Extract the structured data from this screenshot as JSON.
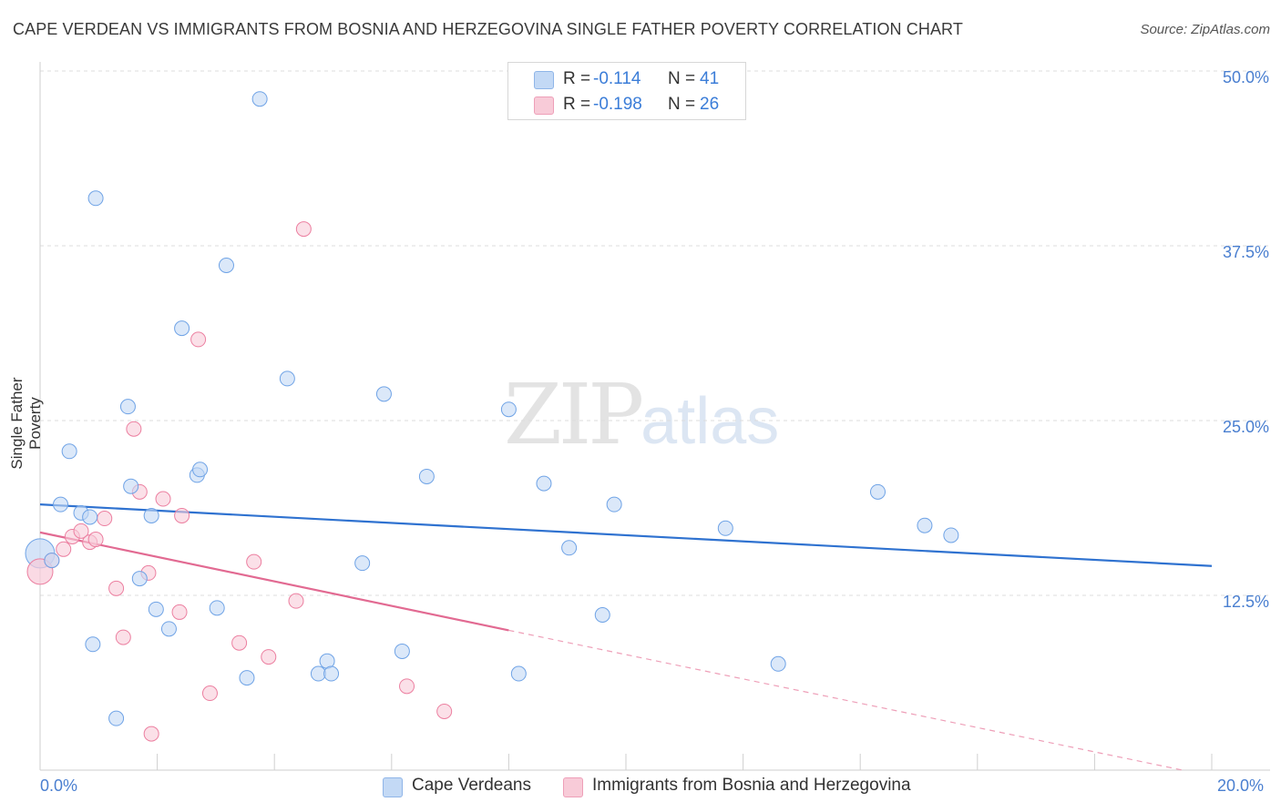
{
  "title": "CAPE VERDEAN VS IMMIGRANTS FROM BOSNIA AND HERZEGOVINA SINGLE FATHER POVERTY CORRELATION CHART",
  "source": "Source: ZipAtlas.com",
  "watermark": {
    "zip": "ZIP",
    "atlas": "atlas"
  },
  "legend_stats": [
    {
      "r_label": "R =",
      "r_value": "-0.114",
      "n_label": "N =",
      "n_value": "41",
      "color": "#a8c8f0"
    },
    {
      "r_label": "R =",
      "r_value": "-0.198",
      "n_label": "N =",
      "n_value": "26",
      "color": "#f5b8ca"
    }
  ],
  "chart_data": {
    "type": "scatter",
    "title": "CAPE VERDEAN VS IMMIGRANTS FROM BOSNIA AND HERZEGOVINA SINGLE FATHER POVERTY CORRELATION CHART",
    "xlabel": "",
    "ylabel": "Single Father Poverty",
    "xlim": [
      0,
      20
    ],
    "ylim": [
      0,
      50
    ],
    "x_tick_labels": [
      "0.0%",
      "20.0%"
    ],
    "y_ticks": [
      12.5,
      25.0,
      37.5,
      50.0
    ],
    "y_tick_labels": [
      "12.5%",
      "25.0%",
      "37.5%",
      "50.0%"
    ],
    "grid": "horizontal dashed",
    "legend_position": "bottom",
    "series": [
      {
        "name": "Cape Verdeans",
        "color": "#6fa3e6",
        "fill": "#c3d9f5",
        "points": [
          [
            0.05,
            15.5
          ],
          [
            0.2,
            15.0
          ],
          [
            0.35,
            19.0
          ],
          [
            0.5,
            22.8
          ],
          [
            0.7,
            18.4
          ],
          [
            0.85,
            18.1
          ],
          [
            0.9,
            9.0
          ],
          [
            0.95,
            40.9
          ],
          [
            1.3,
            3.7
          ],
          [
            1.5,
            26.0
          ],
          [
            1.55,
            20.3
          ],
          [
            1.7,
            13.7
          ],
          [
            1.9,
            18.2
          ],
          [
            1.98,
            11.5
          ],
          [
            2.2,
            10.1
          ],
          [
            2.42,
            31.6
          ],
          [
            2.68,
            21.1
          ],
          [
            2.73,
            21.5
          ],
          [
            3.02,
            11.6
          ],
          [
            3.18,
            36.1
          ],
          [
            3.53,
            6.6
          ],
          [
            3.75,
            48.0
          ],
          [
            4.22,
            28.0
          ],
          [
            4.75,
            6.9
          ],
          [
            4.9,
            7.8
          ],
          [
            4.97,
            6.9
          ],
          [
            5.5,
            14.8
          ],
          [
            5.87,
            26.9
          ],
          [
            6.18,
            8.5
          ],
          [
            6.6,
            21.0
          ],
          [
            8.0,
            25.8
          ],
          [
            8.17,
            6.9
          ],
          [
            8.6,
            20.5
          ],
          [
            9.03,
            15.9
          ],
          [
            9.6,
            11.1
          ],
          [
            9.8,
            19.0
          ],
          [
            11.7,
            17.3
          ],
          [
            12.6,
            7.6
          ],
          [
            14.3,
            19.9
          ],
          [
            15.1,
            17.5
          ],
          [
            15.55,
            16.8
          ]
        ],
        "trend": {
          "x": [
            0,
            20
          ],
          "y": [
            19.0,
            14.6
          ]
        }
      },
      {
        "name": "Immigrants from Bosnia and Herzegovina",
        "color": "#ec7fa0",
        "fill": "#f8cbd8",
        "points": [
          [
            0.05,
            14.2
          ],
          [
            0.2,
            15.0
          ],
          [
            0.4,
            15.8
          ],
          [
            0.55,
            16.7
          ],
          [
            0.7,
            17.1
          ],
          [
            0.85,
            16.3
          ],
          [
            0.95,
            16.5
          ],
          [
            1.1,
            18.0
          ],
          [
            1.3,
            13.0
          ],
          [
            1.42,
            9.5
          ],
          [
            1.6,
            24.4
          ],
          [
            1.7,
            19.9
          ],
          [
            1.85,
            14.1
          ],
          [
            1.9,
            2.6
          ],
          [
            2.1,
            19.4
          ],
          [
            2.38,
            11.3
          ],
          [
            2.42,
            18.2
          ],
          [
            2.7,
            30.8
          ],
          [
            2.9,
            5.5
          ],
          [
            3.4,
            9.1
          ],
          [
            3.65,
            14.9
          ],
          [
            3.9,
            8.1
          ],
          [
            4.37,
            12.1
          ],
          [
            4.5,
            38.7
          ],
          [
            6.26,
            6.0
          ],
          [
            6.9,
            4.2
          ]
        ],
        "trend": {
          "x": [
            0,
            8.0
          ],
          "y": [
            17.0,
            10.0
          ]
        },
        "trend_extension": {
          "x": [
            8.0,
            19.5
          ],
          "y": [
            10.0,
            0.0
          ]
        }
      }
    ]
  }
}
